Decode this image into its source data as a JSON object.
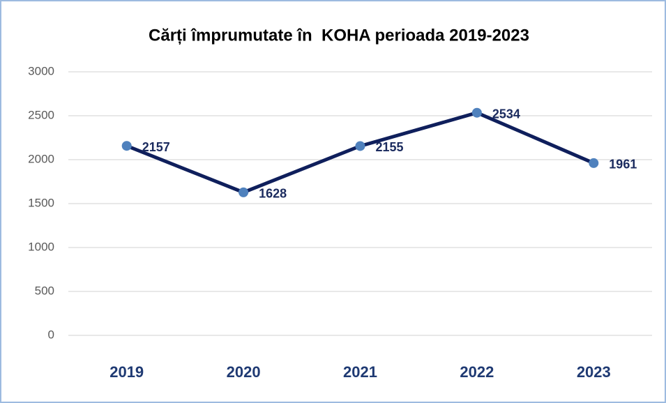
{
  "chart_data": {
    "type": "line",
    "title": "Cărți împrumutate în  KOHA perioada 2019-2023",
    "categories": [
      "2019",
      "2020",
      "2021",
      "2022",
      "2023"
    ],
    "series": [
      {
        "name": "Cărți împrumutate",
        "color": "#0f1f5c",
        "marker_color": "#4f81bd",
        "values": [
          2157,
          1628,
          2155,
          2534,
          1961
        ]
      }
    ],
    "ylim": [
      0,
      3000
    ],
    "yticks": [
      0,
      500,
      1000,
      1500,
      2000,
      2500,
      3000
    ],
    "grid": true
  }
}
